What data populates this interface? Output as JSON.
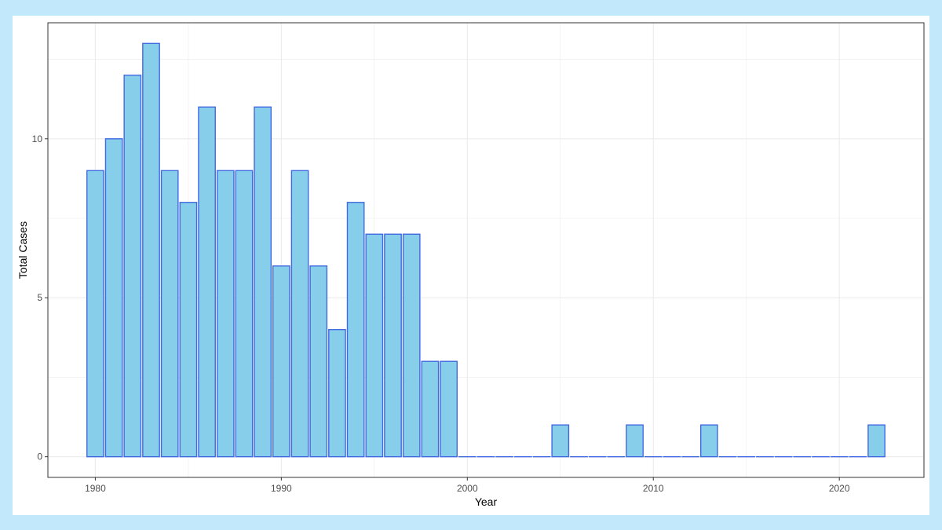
{
  "chart_data": {
    "type": "bar",
    "xlabel": "Year",
    "ylabel": "Total Cases",
    "x": [
      1980,
      1981,
      1982,
      1983,
      1984,
      1985,
      1986,
      1987,
      1988,
      1989,
      1990,
      1991,
      1992,
      1993,
      1994,
      1995,
      1996,
      1997,
      1998,
      1999,
      2000,
      2001,
      2002,
      2003,
      2004,
      2005,
      2006,
      2007,
      2008,
      2009,
      2010,
      2011,
      2012,
      2013,
      2014,
      2015,
      2016,
      2017,
      2018,
      2019,
      2020,
      2021,
      2022
    ],
    "values": [
      9,
      10,
      12,
      13,
      9,
      8,
      11,
      9,
      9,
      11,
      6,
      9,
      6,
      4,
      8,
      7,
      7,
      7,
      3,
      3,
      0,
      0,
      0,
      0,
      0,
      1,
      0,
      0,
      0,
      1,
      0,
      0,
      0,
      1,
      0,
      0,
      0,
      0,
      0,
      0,
      0,
      0,
      1
    ],
    "xticks": [
      1980,
      1990,
      2000,
      2010,
      2020
    ],
    "yticks": [
      0,
      5,
      10
    ],
    "xlim": [
      1977.45,
      2024.55
    ],
    "ylim": [
      -0.65,
      13.65
    ],
    "grid": true,
    "legend": "none",
    "colors": {
      "bar_fill": "#87ceeb",
      "bar_stroke": "#4169e1",
      "grid": "#ebebeb",
      "panel_border": "#333333"
    }
  }
}
